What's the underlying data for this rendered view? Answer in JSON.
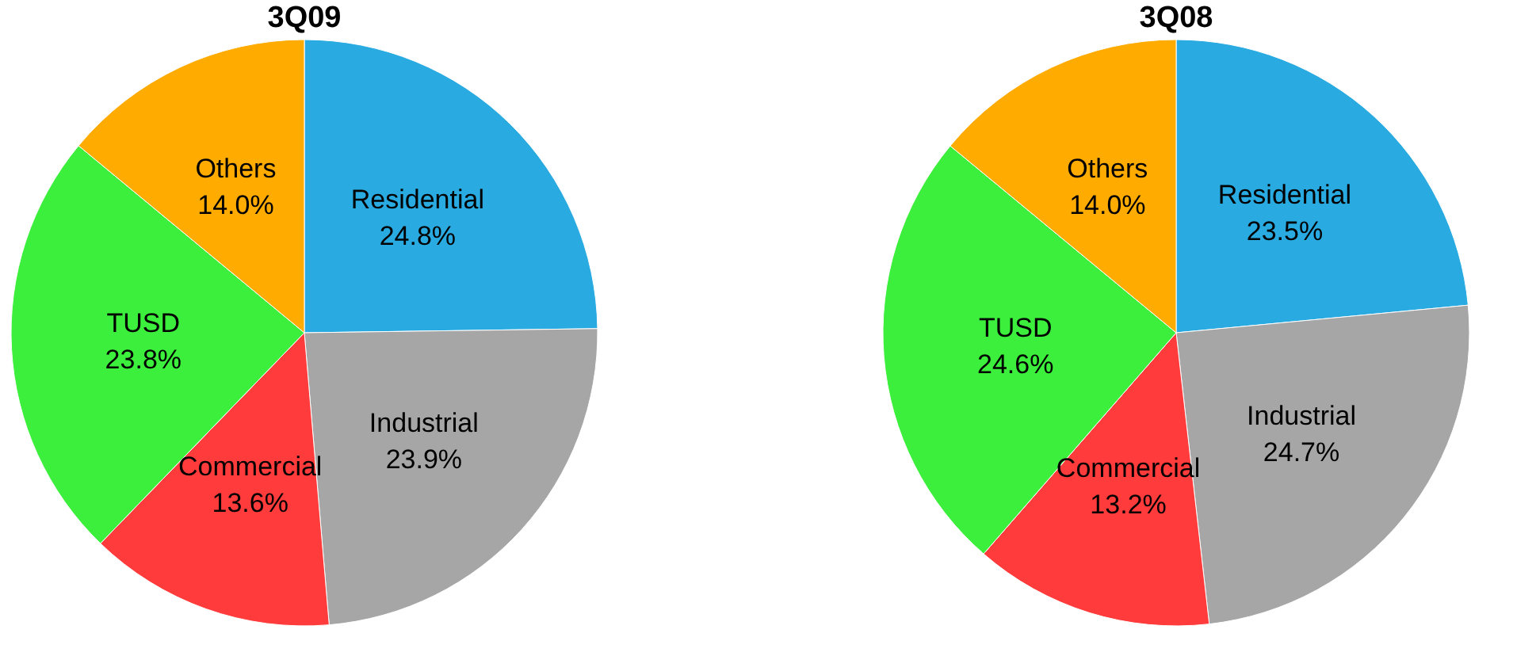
{
  "chart_data": [
    {
      "type": "pie",
      "title": "3Q09",
      "categories": [
        "Residential",
        "Industrial",
        "Commercial",
        "TUSD",
        "Others"
      ],
      "values": [
        24.8,
        23.9,
        13.6,
        23.8,
        14.0
      ],
      "colors": [
        "#29abe2",
        "#a6a6a6",
        "#ff3b3b",
        "#3cef3c",
        "#ffab00"
      ],
      "value_labels": [
        "24.8%",
        "23.9%",
        "13.6%",
        "23.8%",
        "14.0%"
      ]
    },
    {
      "type": "pie",
      "title": "3Q08",
      "categories": [
        "Residential",
        "Industrial",
        "Commercial",
        "TUSD",
        "Others"
      ],
      "values": [
        23.5,
        24.7,
        13.2,
        24.6,
        14.0
      ],
      "colors": [
        "#29abe2",
        "#a6a6a6",
        "#ff3b3b",
        "#3cef3c",
        "#ffab00"
      ],
      "value_labels": [
        "23.5%",
        "24.7%",
        "13.2%",
        "24.6%",
        "14.0%"
      ]
    }
  ]
}
